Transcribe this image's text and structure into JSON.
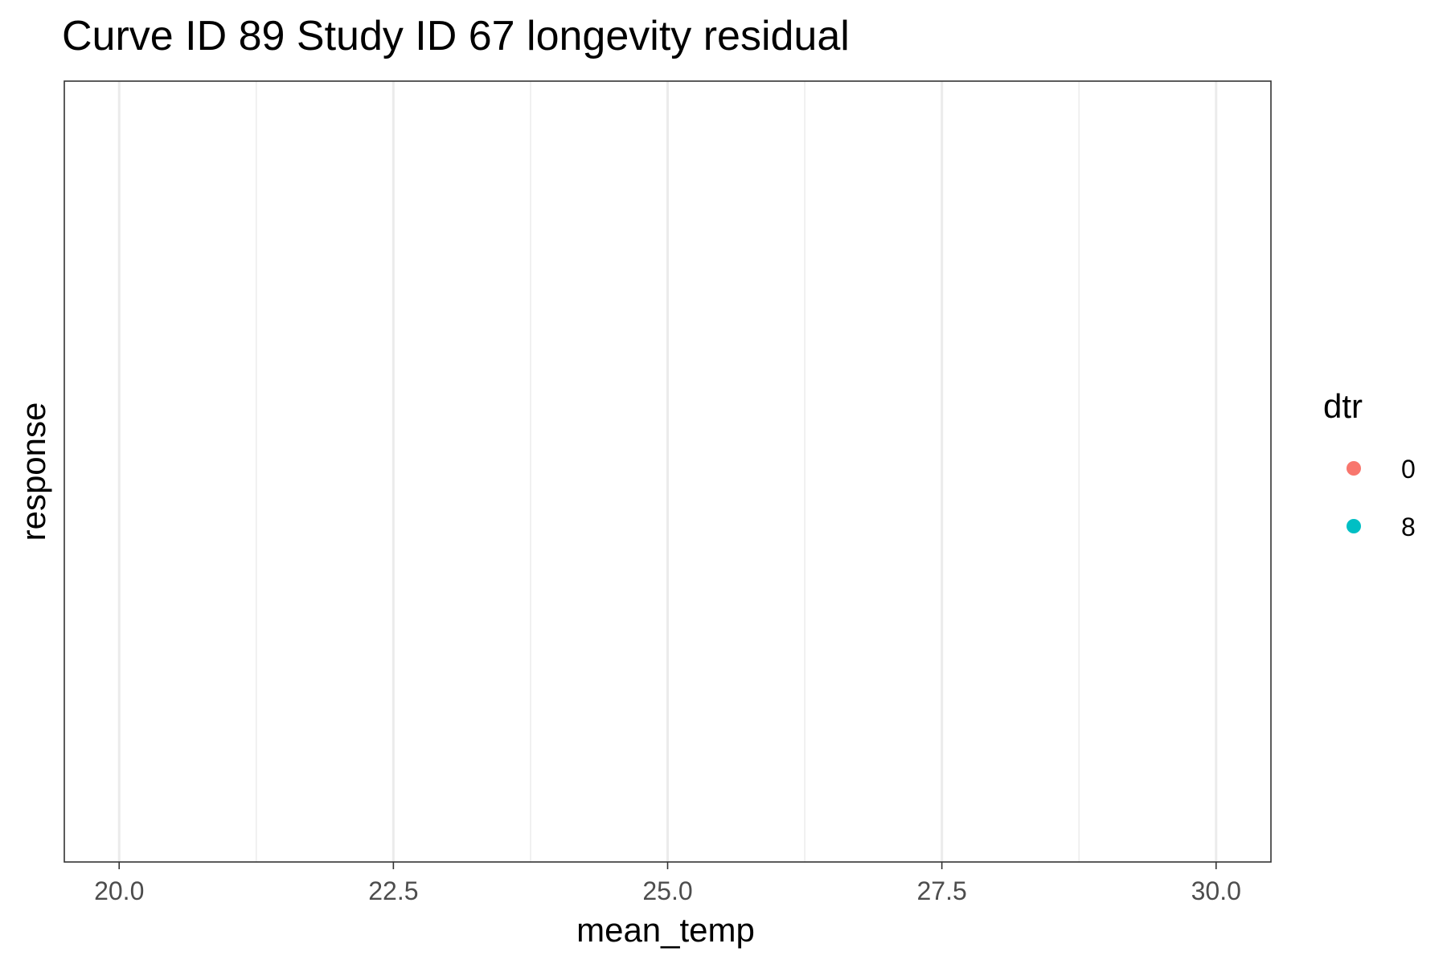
{
  "chart_data": {
    "type": "scatter",
    "title": "Curve ID 89 Study ID 67 longevity residual",
    "xlabel": "mean_temp",
    "ylabel": "response",
    "xlim": [
      19.5,
      30.5
    ],
    "x_ticks": [
      20.0,
      22.5,
      25.0,
      27.5,
      30.0
    ],
    "x_tick_labels": [
      "20.0",
      "22.5",
      "25.0",
      "27.5",
      "30.0"
    ],
    "x_minor_ticks": [
      21.25,
      23.75,
      26.25,
      28.75
    ],
    "y_ticks": [],
    "grid": true,
    "legend": {
      "title": "dtr",
      "position": "right",
      "entries": [
        {
          "label": "0",
          "color": "#F8766D"
        },
        {
          "label": "8",
          "color": "#00BFC4"
        }
      ]
    },
    "series": [
      {
        "name": "0",
        "color": "#F8766D",
        "points": []
      },
      {
        "name": "8",
        "color": "#00BFC4",
        "points": []
      }
    ]
  }
}
